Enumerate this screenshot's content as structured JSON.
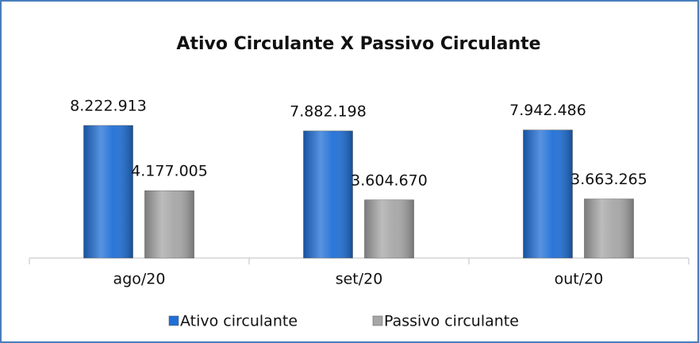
{
  "chart_data": {
    "type": "bar",
    "title": "Ativo Circulante X Passivo Circulante",
    "categories": [
      "ago/20",
      "set/20",
      "out/20"
    ],
    "series": [
      {
        "name": "Ativo circulante",
        "color": "#1f6fd6",
        "values": [
          8222913,
          7882198,
          7942486
        ],
        "value_labels": [
          "8.222.913",
          "7.882.198",
          "7.942.486"
        ]
      },
      {
        "name": "Passivo circulante",
        "color": "#a6a6a6",
        "values": [
          4177005,
          3604670,
          3663265
        ],
        "value_labels": [
          "4.177.005",
          "3.604.670",
          "3.663.265"
        ]
      }
    ],
    "legend": "bottom"
  }
}
